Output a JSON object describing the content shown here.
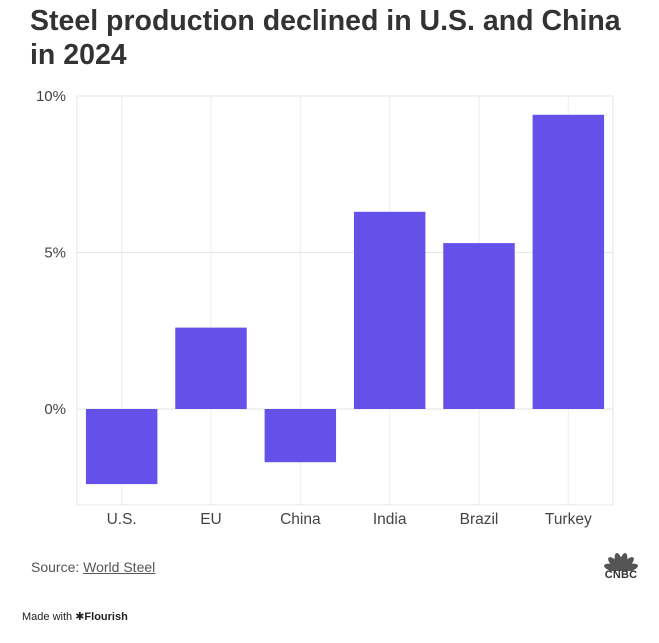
{
  "header": {
    "title": "Steel production declined in U.S. and China in 2024"
  },
  "chart_data": {
    "type": "bar",
    "categories": [
      "U.S.",
      "EU",
      "China",
      "India",
      "Brazil",
      "Turkey"
    ],
    "values": [
      -2.4,
      2.6,
      -1.7,
      6.3,
      5.3,
      9.4
    ],
    "yticks": [
      0,
      5,
      10
    ],
    "ytick_labels": [
      "0%",
      "5%",
      "10%"
    ],
    "ylim": [
      -3,
      10
    ],
    "xlabel": "",
    "ylabel": "",
    "grid": true,
    "bar_color": "#6550ea"
  },
  "footer": {
    "source_prefix": "Source:",
    "source_link": "World Steel",
    "logo_text": "CNBC",
    "made_with": "Made with",
    "made_brand": "Flourish"
  },
  "colors": {
    "logo": [
      "#f4a41d",
      "#e53935",
      "#8e44ad",
      "#1e88e5",
      "#43a047",
      "#fbc02d"
    ]
  }
}
